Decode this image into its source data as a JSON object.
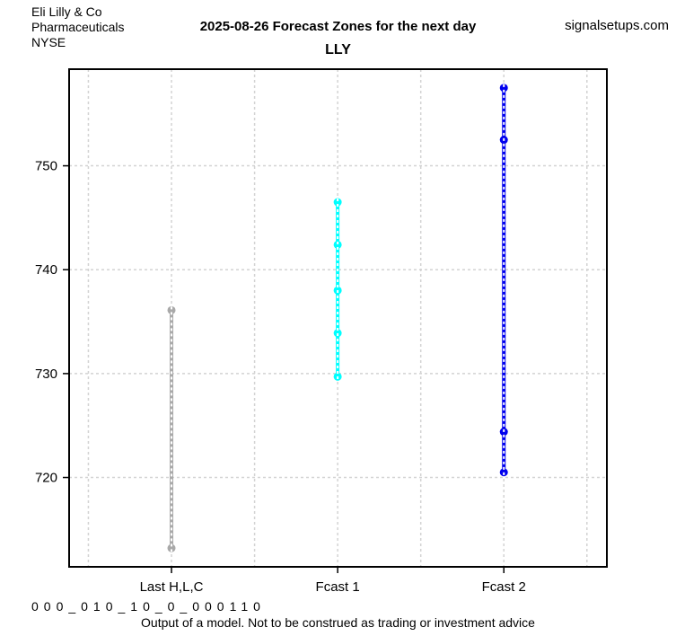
{
  "header": {
    "company": "Eli Lilly & Co",
    "sector": "Pharmaceuticals",
    "exchange": "NYSE",
    "forecast_title": "2025-08-26 Forecast Zones for the next day",
    "website": "signalsetups.com"
  },
  "title": "LLY",
  "footer": {
    "signal_code": "000_010_10_0_000110",
    "disclaimer": "Output of a model. Not to be construed as trading or investment advice"
  },
  "colors": {
    "last_hlc": "#A9A9A9",
    "fcast1": "#00FFFF",
    "fcast2": "#0000EE",
    "grid": "#D3D3D3",
    "dash_overlay": "#FFFFFF",
    "axis": "#000000",
    "background": "#FFFFFF"
  },
  "chart_data": {
    "type": "scatter",
    "title": "LLY",
    "subtitle": "2025-08-26 Forecast Zones for the next day",
    "categories": [
      "Last H,L,C",
      "Fcast 1",
      "Fcast 2"
    ],
    "xlabel": "",
    "ylabel": "",
    "ylim": [
      711.4,
      759.3
    ],
    "yticks": [
      720,
      730,
      740,
      750
    ],
    "xlim": [
      0.384,
      3.62
    ],
    "grid": true,
    "grid_x_positions": [
      0.5,
      1,
      1.5,
      2,
      2.5,
      3,
      3.5
    ],
    "legend_position": "none",
    "series": [
      {
        "name": "Last H,L,C",
        "x": 1,
        "color": "#A9A9A9",
        "values": [
          736.1,
          713.2
        ]
      },
      {
        "name": "Fcast 1",
        "x": 2,
        "color": "#00FFFF",
        "values": [
          746.5,
          742.4,
          738.0,
          733.9,
          729.7
        ]
      },
      {
        "name": "Fcast 2",
        "x": 3,
        "color": "#0000EE",
        "values": [
          757.5,
          752.5,
          724.4,
          720.5
        ]
      }
    ]
  }
}
